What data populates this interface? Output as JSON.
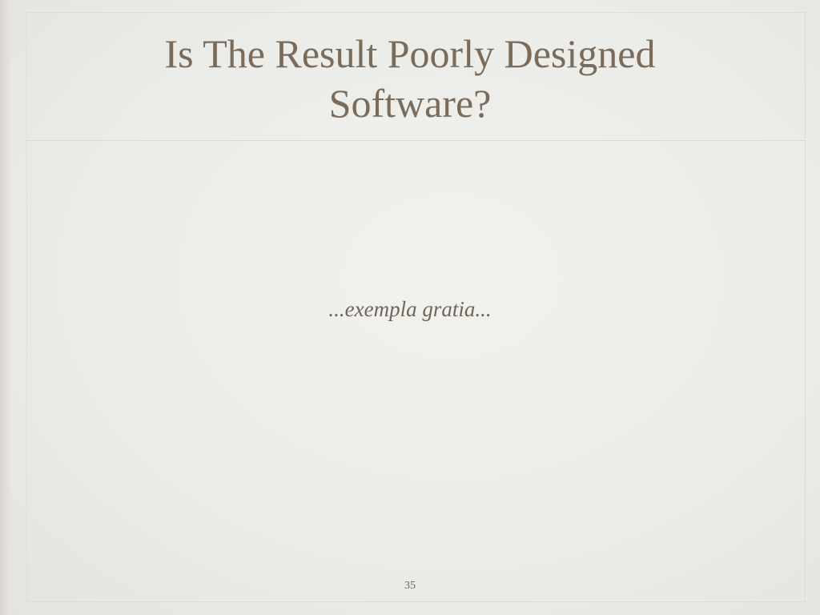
{
  "slide": {
    "title_line_1": "Is The Result Poorly Designed",
    "title_line_2": "Software?",
    "body_text": "...exempla gratia...",
    "page_number": "35"
  },
  "colors": {
    "background": "#ebebe8",
    "title": "#7a6b5a",
    "body_text": "#6f655a",
    "frame": "#dcdcd8"
  }
}
